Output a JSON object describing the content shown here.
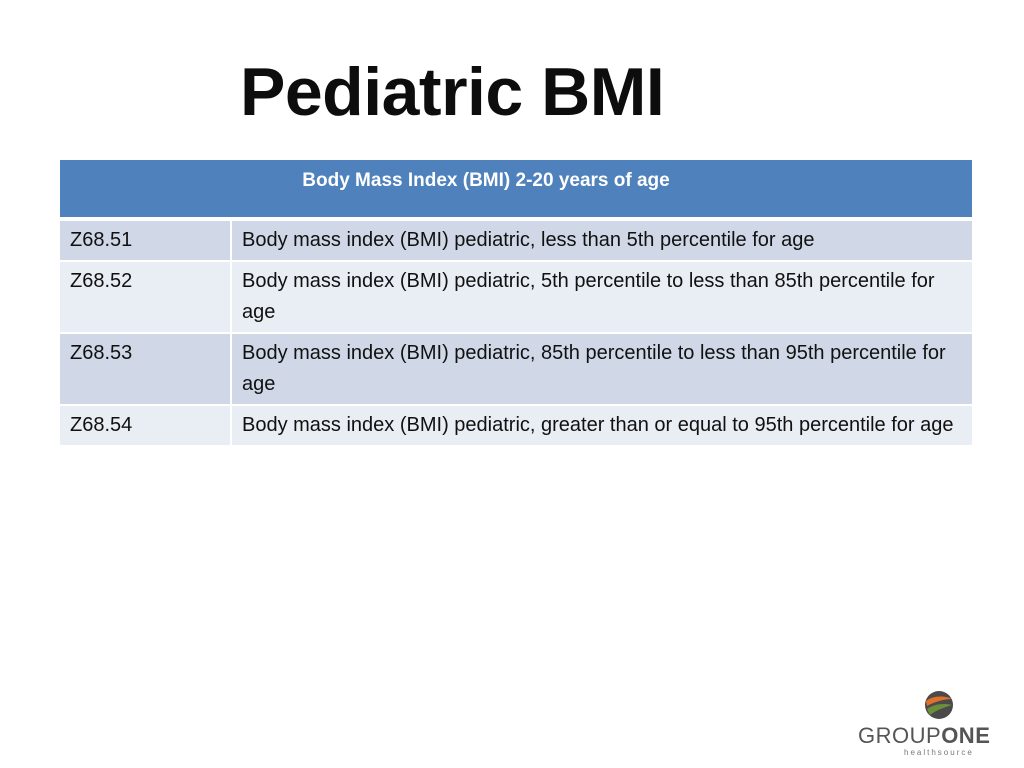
{
  "title": "Pediatric BMI",
  "table": {
    "header": "Body Mass Index (BMI) 2-20 years of age",
    "rows": [
      {
        "code": "Z68.51",
        "description": "Body mass index (BMI) pediatric, less than 5th percentile for age"
      },
      {
        "code": "Z68.52",
        "description": "Body mass index (BMI) pediatric, 5th percentile to less than 85th percentile for age"
      },
      {
        "code": "Z68.53",
        "description": "Body mass index (BMI) pediatric, 85th percentile to less than 95th percentile for age"
      },
      {
        "code": "Z68.54",
        "description": "Body mass index (BMI) pediatric, greater than or equal to 95th percentile for age"
      }
    ]
  },
  "logo": {
    "word_group": "GROUP",
    "word_one": "ONE",
    "subtitle": "healthsource"
  },
  "colors": {
    "header_bg": "#4f81bd",
    "row_odd_bg": "#d0d8e8",
    "row_even_bg": "#e9edf4",
    "logo_orange": "#e0702a",
    "logo_green": "#6b8e3a",
    "logo_dark": "#4a4a4a"
  },
  "icons": {
    "logo_mark": "globe-swoosh-icon"
  }
}
